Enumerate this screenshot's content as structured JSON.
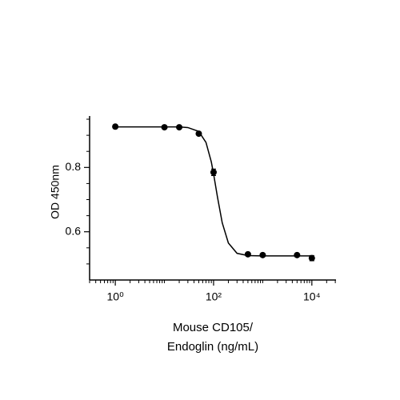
{
  "chart_data": {
    "type": "scatter",
    "y_label": "OD 450nm",
    "x_label": [
      "Mouse CD105/",
      "Endoglin (ng/mL)"
    ],
    "x_log": true,
    "xlim": [
      0.3,
      31000
    ],
    "ylim": [
      0.45,
      0.96
    ],
    "xticks": [
      {
        "value": 1,
        "label": "10⁰"
      },
      {
        "value": 100,
        "label": "10²"
      },
      {
        "value": 10000,
        "label": "10⁴"
      }
    ],
    "xminorticks": [
      0.3,
      0.4,
      0.5,
      0.6,
      0.7,
      0.8,
      0.9,
      2,
      3,
      4,
      5,
      6,
      7,
      8,
      9,
      10,
      20,
      30,
      40,
      50,
      60,
      70,
      80,
      90,
      200,
      300,
      400,
      500,
      600,
      700,
      800,
      900,
      1000,
      2000,
      3000,
      4000,
      5000,
      6000,
      7000,
      8000,
      9000,
      20000,
      30000
    ],
    "yticks": [
      0.6,
      0.8
    ],
    "yminorticks": [
      0.5,
      0.55,
      0.65,
      0.7,
      0.75,
      0.85,
      0.9,
      0.95
    ],
    "color": "#000000",
    "series": [
      {
        "x": [
          1,
          10,
          20,
          50,
          100,
          500,
          1000,
          5000,
          10000
        ],
        "values": [
          0.927,
          0.925,
          0.925,
          0.905,
          0.785,
          0.53,
          0.5275,
          0.5275,
          0.518
        ],
        "errors": [
          0.003,
          0.003,
          0.003,
          0.003,
          0.01,
          0.003,
          0.003,
          0.003,
          0.008
        ]
      },
      {
        "style": "line",
        "x": [
          1,
          3,
          10,
          20,
          30,
          50,
          70,
          90,
          100,
          120,
          150,
          200,
          300,
          500,
          1000,
          10000
        ],
        "values": [
          0.926,
          0.926,
          0.926,
          0.926,
          0.924,
          0.912,
          0.878,
          0.817,
          0.78,
          0.708,
          0.628,
          0.565,
          0.533,
          0.526,
          0.525,
          0.525
        ]
      }
    ]
  }
}
